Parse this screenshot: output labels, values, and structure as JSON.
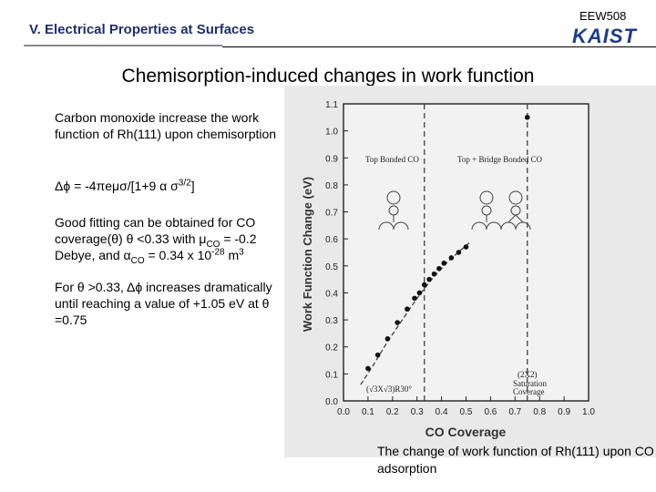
{
  "header": {
    "section_title": "V. Electrical Properties at Surfaces",
    "course_code": "EEW508",
    "logo_text": "KAIST"
  },
  "slide": {
    "title": "Chemisorption-induced changes in work function",
    "para1": "Carbon monoxide increase the work function of Rh(111) upon chemisorption",
    "formula": "Δϕ = -4πeμσ/[1+9 α σ3/2]",
    "para2": "Good fitting can be obtained for CO coverage(θ) θ <0.33 with μCO = -0.2 Debye, and αCO = 0.34 x 10-28 m3",
    "para3": "For θ >0.33, Δϕ increases dramatically until reaching a value of +1.05 eV at θ =0.75"
  },
  "figure": {
    "ylabel": "Work Function Change (eV)",
    "xlabel": "CO Coverage",
    "label_top": "Top Bonded CO",
    "label_bridge": "Top + Bridge Bonded CO",
    "label_sqrt": "(√3X√3)R30°",
    "label_2x2": "(2X2) Saturation Coverage",
    "caption": "The change of work function of Rh(111) upon CO adsorption"
  },
  "chart_data": {
    "type": "scatter",
    "xlabel": "CO Coverage",
    "ylabel": "Work Function Change (eV)",
    "xlim": [
      0.0,
      1.0
    ],
    "ylim": [
      0.0,
      1.1
    ],
    "x_ticks": [
      0.0,
      0.1,
      0.2,
      0.3,
      0.4,
      0.5,
      0.6,
      0.7,
      0.8,
      0.9,
      1.0
    ],
    "y_ticks": [
      0.0,
      0.1,
      0.2,
      0.3,
      0.4,
      0.5,
      0.6,
      0.7,
      0.8,
      0.9,
      1.0,
      1.1
    ],
    "x_tick_labels": [
      "0.0",
      "0.1",
      "0.2",
      "0.3",
      "0.4",
      "0.5",
      "0.6",
      "0.7",
      "0.8",
      "0.9",
      "1.0"
    ],
    "y_tick_labels": [
      "0.0",
      "0.1",
      "0.2",
      "0.3",
      "0.4",
      "0.5",
      "0.6",
      "0.7",
      "0.8",
      "0.9",
      "1.0",
      "1.1"
    ],
    "dashed_verticals": [
      0.33,
      0.75
    ],
    "series": [
      {
        "x": [
          0.1,
          0.14,
          0.18,
          0.22,
          0.26,
          0.29,
          0.31,
          0.33,
          0.35,
          0.37,
          0.39,
          0.41,
          0.44,
          0.47,
          0.5,
          0.75
        ],
        "y": [
          0.12,
          0.17,
          0.23,
          0.29,
          0.34,
          0.38,
          0.4,
          0.43,
          0.45,
          0.47,
          0.49,
          0.51,
          0.53,
          0.55,
          0.57,
          1.05
        ]
      }
    ],
    "fit": {
      "x": [
        0.07,
        0.12,
        0.18,
        0.24,
        0.3,
        0.36,
        0.42,
        0.48,
        0.52
      ],
      "y": [
        0.06,
        0.13,
        0.22,
        0.3,
        0.38,
        0.45,
        0.51,
        0.56,
        0.59
      ]
    }
  }
}
